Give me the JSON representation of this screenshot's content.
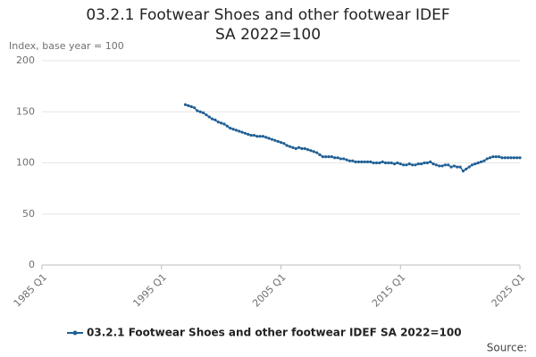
{
  "chart_data": {
    "type": "line",
    "title": "03.2.1 Footwear Shoes and other footwear IDEF SA 2022=100",
    "y_label": "Index, base year = 100",
    "source": "Source:",
    "x": [
      "1997 Q1",
      "1997 Q2",
      "1997 Q3",
      "1997 Q4",
      "1998 Q1",
      "1998 Q2",
      "1998 Q3",
      "1998 Q4",
      "1999 Q1",
      "1999 Q2",
      "1999 Q3",
      "1999 Q4",
      "2000 Q1",
      "2000 Q2",
      "2000 Q3",
      "2000 Q4",
      "2001 Q1",
      "2001 Q2",
      "2001 Q3",
      "2001 Q4",
      "2002 Q1",
      "2002 Q2",
      "2002 Q3",
      "2002 Q4",
      "2003 Q1",
      "2003 Q2",
      "2003 Q3",
      "2003 Q4",
      "2004 Q1",
      "2004 Q2",
      "2004 Q3",
      "2004 Q4",
      "2005 Q1",
      "2005 Q2",
      "2005 Q3",
      "2005 Q4",
      "2006 Q1",
      "2006 Q2",
      "2006 Q3",
      "2006 Q4",
      "2007 Q1",
      "2007 Q2",
      "2007 Q3",
      "2007 Q4",
      "2008 Q1",
      "2008 Q2",
      "2008 Q3",
      "2008 Q4",
      "2009 Q1",
      "2009 Q2",
      "2009 Q3",
      "2009 Q4",
      "2010 Q1",
      "2010 Q2",
      "2010 Q3",
      "2010 Q4",
      "2011 Q1",
      "2011 Q2",
      "2011 Q3",
      "2011 Q4",
      "2012 Q1",
      "2012 Q2",
      "2012 Q3",
      "2012 Q4",
      "2013 Q1",
      "2013 Q2",
      "2013 Q3",
      "2013 Q4",
      "2014 Q1",
      "2014 Q2",
      "2014 Q3",
      "2014 Q4",
      "2015 Q1",
      "2015 Q2",
      "2015 Q3",
      "2015 Q4",
      "2016 Q1",
      "2016 Q2",
      "2016 Q3",
      "2016 Q4",
      "2017 Q1",
      "2017 Q2",
      "2017 Q3",
      "2017 Q4",
      "2018 Q1",
      "2018 Q2",
      "2018 Q3",
      "2018 Q4",
      "2019 Q1",
      "2019 Q2",
      "2019 Q3",
      "2019 Q4",
      "2020 Q1",
      "2020 Q2",
      "2020 Q3",
      "2020 Q4",
      "2021 Q1",
      "2021 Q2",
      "2021 Q3",
      "2021 Q4",
      "2022 Q1",
      "2022 Q2",
      "2022 Q3",
      "2022 Q4",
      "2023 Q1",
      "2023 Q2",
      "2023 Q3",
      "2023 Q4",
      "2024 Q1",
      "2024 Q2",
      "2024 Q3",
      "2024 Q4",
      "2025 Q1"
    ],
    "series": [
      {
        "name": "03.2.1 Footwear Shoes and other footwear IDEF SA 2022=100",
        "color": "#206095",
        "values": [
          157,
          156,
          155,
          154,
          151,
          150,
          149,
          147,
          145,
          143,
          142,
          140,
          139,
          138,
          136,
          134,
          133,
          132,
          131,
          130,
          129,
          128,
          127,
          127,
          126,
          126,
          126,
          125,
          124,
          123,
          122,
          121,
          120,
          119,
          117,
          116,
          115,
          114,
          115,
          114,
          114,
          113,
          112,
          111,
          110,
          108,
          106,
          106,
          106,
          106,
          105,
          105,
          104,
          104,
          103,
          102,
          102,
          101,
          101,
          101,
          101,
          101,
          101,
          100,
          100,
          100,
          101,
          100,
          100,
          100,
          99,
          100,
          99,
          98,
          98,
          99,
          98,
          98,
          99,
          99,
          100,
          100,
          101,
          99,
          98,
          97,
          97,
          98,
          98,
          96,
          97,
          96,
          96,
          92,
          94,
          96,
          98,
          99,
          100,
          101,
          102,
          104,
          105,
          106,
          106,
          106,
          105,
          105,
          105,
          105,
          105,
          105,
          105
        ]
      }
    ],
    "xlim": [
      "1985 Q1",
      "2025 Q1"
    ],
    "xticks": [
      "1985 Q1",
      "1995 Q1",
      "2005 Q1",
      "2015 Q1",
      "2025 Q1"
    ],
    "ylim": [
      0,
      200
    ],
    "yticks": [
      0,
      50,
      100,
      150,
      200
    ],
    "grid": true
  }
}
